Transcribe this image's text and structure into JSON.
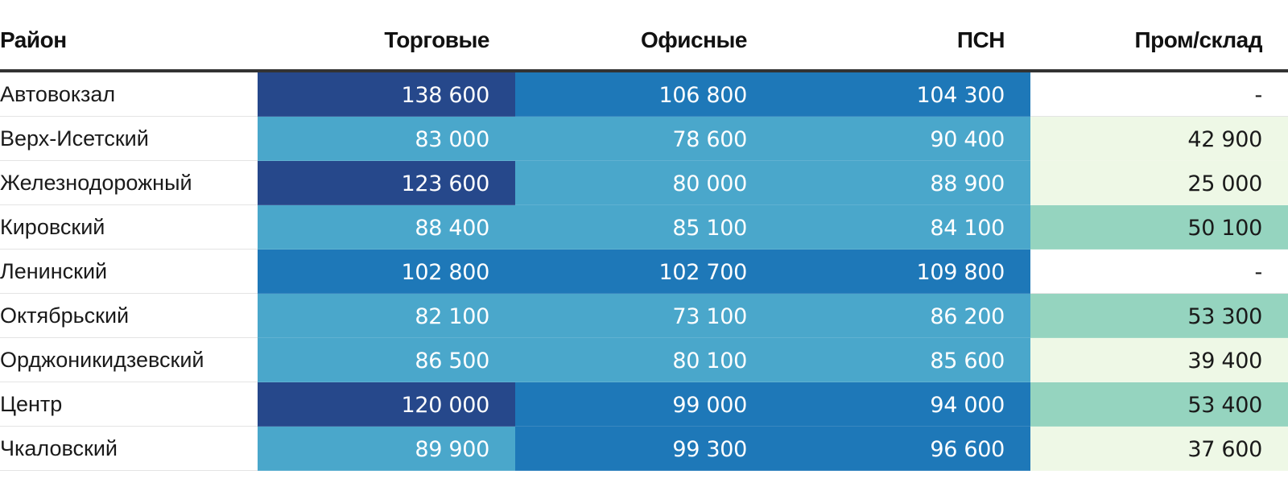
{
  "chart_data": {
    "type": "table",
    "columns": [
      "Район",
      "Торговые",
      "Офисные",
      "ПСН",
      "Пром/склад"
    ],
    "rows": [
      {
        "name": "Автовокзал",
        "values": [
          "138 600",
          "106 800",
          "104 300",
          "-"
        ]
      },
      {
        "name": "Верх-Исетский",
        "values": [
          "83 000",
          "78 600",
          "90 400",
          "42 900"
        ]
      },
      {
        "name": "Железнодорожный",
        "values": [
          "123 600",
          "80 000",
          "88 900",
          "25 000"
        ]
      },
      {
        "name": "Кировский",
        "values": [
          "88 400",
          "85 100",
          "84 100",
          "50 100"
        ]
      },
      {
        "name": "Ленинский",
        "values": [
          "102 800",
          "102 700",
          "109 800",
          "-"
        ]
      },
      {
        "name": "Октябрьский",
        "values": [
          "82 100",
          "73 100",
          "86 200",
          "53 300"
        ]
      },
      {
        "name": "Орджоникидзевский",
        "values": [
          "86 500",
          "80 100",
          "85 600",
          "39 400"
        ]
      },
      {
        "name": "Центр",
        "values": [
          "120 000",
          "99 000",
          "94 000",
          "53 400"
        ]
      },
      {
        "name": "Чкаловский",
        "values": [
          "89 900",
          "99 300",
          "96 600",
          "37 600"
        ]
      }
    ],
    "color_scales": {
      "blue": {
        "dark": "#26488b",
        "mid": "#1e78b8",
        "light": "#4aa7cb"
      },
      "green": {
        "mid": "#95d4bf",
        "light": "#eef8e6",
        "empty": "#ffffff"
      }
    }
  }
}
